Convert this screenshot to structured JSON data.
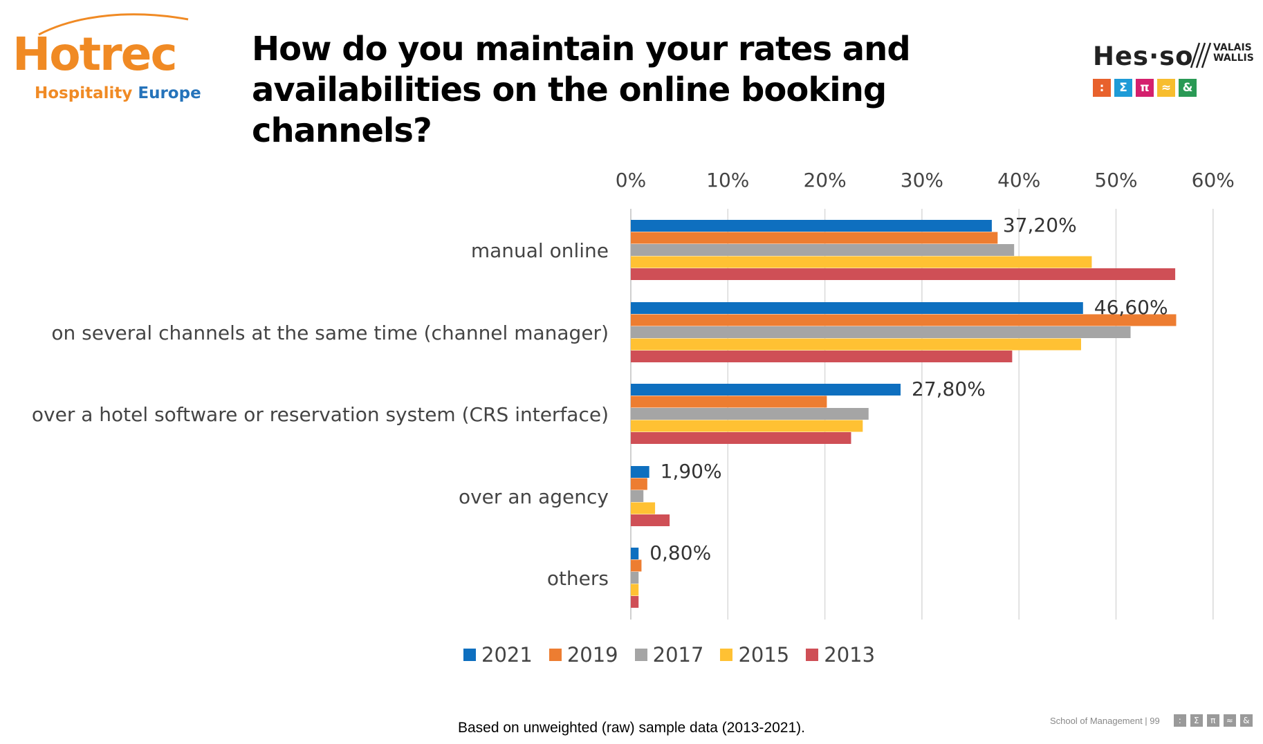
{
  "header": {
    "logo_left": {
      "main": "Hotrec",
      "sub_a": "Hospitality",
      "sub_b": "Europe"
    },
    "title_line1": "How do you maintain your rates and",
    "title_line2": "availabilities on the online booking channels?",
    "logo_right": {
      "main": "Hes·so",
      "region_line1": "VALAIS",
      "region_line2": "WALLIS",
      "squares": [
        {
          "glyph": ":",
          "color": "#e8612c"
        },
        {
          "glyph": "Σ",
          "color": "#1e9bd7"
        },
        {
          "glyph": "π",
          "color": "#d4206d"
        },
        {
          "glyph": "≈",
          "color": "#f7bd2e"
        },
        {
          "glyph": "&",
          "color": "#2a9a55"
        }
      ]
    }
  },
  "chart_data": {
    "type": "bar",
    "orientation": "horizontal",
    "title": "How do you maintain your rates and availabilities on the online booking channels?",
    "xlim": [
      0,
      60
    ],
    "xticks": [
      "0%",
      "10%",
      "20%",
      "30%",
      "40%",
      "50%",
      "60%"
    ],
    "grid": true,
    "legend_position": "bottom",
    "categories": [
      "manual online",
      "on several channels at the same time (channel manager)",
      "over a hotel software or reservation system (CRS interface)",
      "over an agency",
      "others"
    ],
    "series": [
      {
        "name": "2021",
        "color": "#0e6fbf",
        "values": [
          37.2,
          46.6,
          27.8,
          1.9,
          0.8
        ]
      },
      {
        "name": "2019",
        "color": "#ed7d31",
        "values": [
          37.8,
          56.2,
          20.2,
          1.7,
          1.1
        ]
      },
      {
        "name": "2017",
        "color": "#a5a5a5",
        "values": [
          39.5,
          51.5,
          24.5,
          1.3,
          0.8
        ]
      },
      {
        "name": "2015",
        "color": "#ffc133",
        "values": [
          47.5,
          46.4,
          23.9,
          2.5,
          0.8
        ]
      },
      {
        "name": "2013",
        "color": "#cf4f56",
        "values": [
          56.1,
          39.3,
          22.7,
          4.0,
          0.8
        ]
      }
    ],
    "data_labels": [
      "37,20%",
      "46,60%",
      "27,80%",
      "1,90%",
      "0,80%"
    ]
  },
  "footer": {
    "note": "Based on unweighted (raw) sample data (2013-2021).",
    "right_text": "School of Management |  99",
    "glyphs": [
      ":",
      "Σ",
      "π",
      "≈",
      "&"
    ]
  }
}
